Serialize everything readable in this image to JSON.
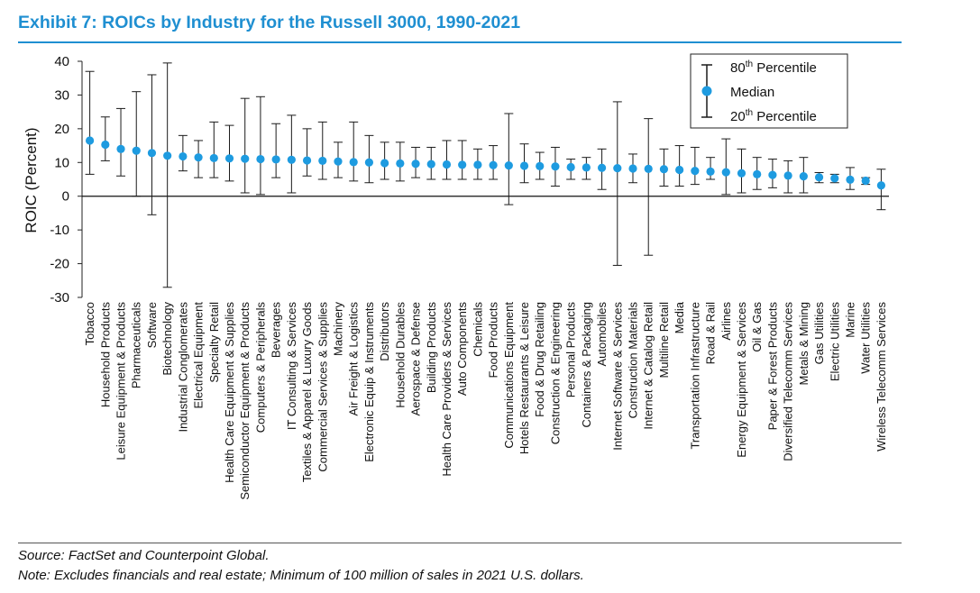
{
  "title": "Exhibit 7: ROICs by Industry for the Russell 3000, 1990-2021",
  "source": "Source: FactSet and Counterpoint Global.",
  "note": "Note: Excludes financials and real estate; Minimum of 100 million of sales in 2021 U.S. dollars.",
  "colors": {
    "title": "#1f8fd1",
    "marker": "#1e9be0",
    "whisker": "#1a1a1a"
  },
  "chart_data": {
    "type": "errorbar",
    "title": "Exhibit 7: ROICs by Industry for the Russell 3000, 1990-2021",
    "xlabel": "",
    "ylabel": "ROIC (Percent)",
    "ylim": [
      -30,
      40
    ],
    "yticks": [
      40,
      30,
      20,
      10,
      0,
      -10,
      -20,
      -30
    ],
    "legend": {
      "position": "top-right",
      "p80": "80th Percentile",
      "median": "Median",
      "p20": "20th Percentile"
    },
    "categories": [
      "Tobacco",
      "Household Products",
      "Leisure Equipment & Products",
      "Pharmaceuticals",
      "Software",
      "Biotechnology",
      "Industrial Conglomerates",
      "Electrical Equipment",
      "Specialty Retail",
      "Health Care Equipment & Supplies",
      "Semiconductor Equipment & Products",
      "Computers & Peripherals",
      "Beverages",
      "IT Consulting & Services",
      "Textiles & Apparel & Luxury Goods",
      "Commercial Services & Supplies",
      "Machinery",
      "Air Freight & Logistics",
      "Electronic Equip & Instruments",
      "Distributors",
      "Household Durables",
      "Aerospace & Defense",
      "Building Products",
      "Health Care Providers & Services",
      "Auto Components",
      "Chemicals",
      "Food Products",
      "Communications Equipment",
      "Hotels Restaurants & Leisure",
      "Food & Drug Retailing",
      "Construction & Engineering",
      "Personal Products",
      "Containers & Packaging",
      "Automobiles",
      "Internet Software & Services",
      "Construction Materials",
      "Internet & Catalog Retail",
      "Multiline Retail",
      "Media",
      "Transportation Infrastructure",
      "Road & Rail",
      "Airlines",
      "Energy Equipment & Services",
      "Oil & Gas",
      "Paper & Forest Products",
      "Diversified Telecomm Services",
      "Metals & Mining",
      "Gas Utilities",
      "Electric Utilities",
      "Marine",
      "Water Utilities",
      "Wireless Telecomm Services"
    ],
    "series": [
      {
        "name": "80th Percentile",
        "values": [
          37,
          23.5,
          26,
          31,
          36,
          39.5,
          18,
          16.5,
          22,
          21,
          29,
          29.5,
          21.5,
          24,
          20,
          22,
          16,
          22,
          18,
          16,
          16,
          14.5,
          14.5,
          16.5,
          16.5,
          14,
          15,
          24.5,
          15.5,
          13,
          14.5,
          11,
          11.5,
          14,
          28,
          12.5,
          23,
          14,
          15,
          14.5,
          11.5,
          17,
          14,
          11.5,
          11,
          10.5,
          11.5,
          7,
          6.5,
          8.5,
          5.5,
          8
        ]
      },
      {
        "name": "Median",
        "values": [
          16.5,
          15.3,
          14,
          13.5,
          12.8,
          12,
          11.8,
          11.5,
          11.3,
          11.2,
          11.1,
          11,
          10.9,
          10.8,
          10.6,
          10.5,
          10.3,
          10.1,
          10,
          9.8,
          9.7,
          9.6,
          9.5,
          9.4,
          9.3,
          9.3,
          9.2,
          9.1,
          9,
          8.9,
          8.8,
          8.6,
          8.5,
          8.4,
          8.3,
          8.2,
          8.1,
          8,
          7.8,
          7.5,
          7.3,
          7.1,
          6.8,
          6.5,
          6.3,
          6.1,
          5.9,
          5.6,
          5.3,
          4.9,
          4.6,
          3.2
        ]
      },
      {
        "name": "20th Percentile",
        "values": [
          6.5,
          10.5,
          6,
          0,
          -5.5,
          -27,
          7.5,
          5.5,
          5.5,
          4.5,
          1,
          0.5,
          5.5,
          1,
          6,
          5,
          5.5,
          4.5,
          4,
          5,
          4.5,
          5.5,
          5,
          5,
          5,
          5,
          5,
          -2.5,
          4,
          5,
          3,
          5,
          5,
          2,
          -20.5,
          4,
          -17.5,
          3,
          3,
          3.5,
          5,
          0.5,
          1,
          2,
          2.5,
          1,
          1,
          4,
          4,
          2,
          3.5,
          -4
        ]
      }
    ]
  }
}
